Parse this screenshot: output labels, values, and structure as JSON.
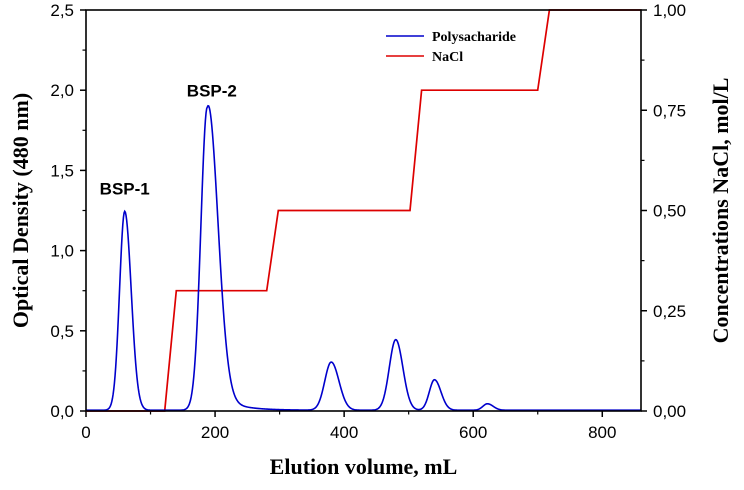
{
  "chart_data": {
    "type": "line",
    "xlabel": "Elution volume, mL",
    "ylabel_left": "Optical Density (480 nm)",
    "ylabel_right": "Concentrations  NaCl, mol/L",
    "xlim": [
      0,
      860
    ],
    "ylim_left": [
      0,
      2.5
    ],
    "ylim_right": [
      0,
      1.0
    ],
    "x_ticks": [
      "0",
      "200",
      "400",
      "600",
      "800"
    ],
    "x_tick_values": [
      0,
      200,
      400,
      600,
      800
    ],
    "y_ticks_left": [
      "0,0",
      "0,5",
      "1,0",
      "1,5",
      "2,0",
      "2,5"
    ],
    "y_tick_values_left": [
      0,
      0.5,
      1.0,
      1.5,
      2.0,
      2.5
    ],
    "y_ticks_right": [
      "0,00",
      "0,25",
      "0,50",
      "0,75",
      "1,00"
    ],
    "y_tick_values_right": [
      0,
      0.25,
      0.5,
      0.75,
      1.0
    ],
    "legend": [
      {
        "name": "Polysacharide",
        "color": "#0000cc"
      },
      {
        "name": "NaCl",
        "color": "#dd0000"
      }
    ],
    "legend_position": "top-right",
    "annotations": [
      {
        "text": "BSP-1",
        "x": 60,
        "y": 1.35
      },
      {
        "text": "BSP-2",
        "x": 195,
        "y": 1.96
      }
    ],
    "series": [
      {
        "name": "Polysacharide",
        "axis": "left",
        "color": "#0000cc",
        "baseline": 0.005,
        "peaks": [
          {
            "center": 60,
            "height": 1.24,
            "sigma_left": 8,
            "sigma_right": 10
          },
          {
            "center": 188,
            "height": 1.89,
            "sigma_left": 10,
            "sigma_right": 16,
            "tail_height": 0.15,
            "tail_decay": 30
          },
          {
            "center": 380,
            "height": 0.3,
            "sigma_left": 10,
            "sigma_right": 12
          },
          {
            "center": 480,
            "height": 0.44,
            "sigma_left": 10,
            "sigma_right": 11
          },
          {
            "center": 540,
            "height": 0.19,
            "sigma_left": 8,
            "sigma_right": 10
          },
          {
            "center": 622,
            "height": 0.04,
            "sigma_left": 7,
            "sigma_right": 9
          }
        ]
      },
      {
        "name": "NaCl",
        "axis": "right",
        "color": "#dd0000",
        "x": [
          0,
          122,
          140,
          280,
          298,
          502,
          520,
          700,
          718,
          860
        ],
        "y": [
          0,
          0,
          0.3,
          0.3,
          0.5,
          0.5,
          0.8,
          0.8,
          1.0,
          1.0
        ]
      }
    ]
  }
}
